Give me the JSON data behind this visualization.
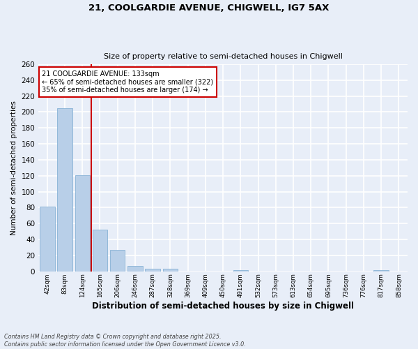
{
  "title_line1": "21, COOLGARDIE AVENUE, CHIGWELL, IG7 5AX",
  "title_line2": "Size of property relative to semi-detached houses in Chigwell",
  "xlabel": "Distribution of semi-detached houses by size in Chigwell",
  "ylabel": "Number of semi-detached properties",
  "categories": [
    "42sqm",
    "83sqm",
    "124sqm",
    "165sqm",
    "206sqm",
    "246sqm",
    "287sqm",
    "328sqm",
    "369sqm",
    "409sqm",
    "450sqm",
    "491sqm",
    "532sqm",
    "573sqm",
    "613sqm",
    "654sqm",
    "695sqm",
    "736sqm",
    "776sqm",
    "817sqm",
    "858sqm"
  ],
  "values": [
    81,
    205,
    121,
    52,
    27,
    7,
    3,
    3,
    0,
    0,
    0,
    2,
    0,
    0,
    0,
    0,
    0,
    0,
    0,
    2,
    0
  ],
  "bar_color": "#b8cfe8",
  "bar_edgecolor": "#7aaad0",
  "vline_x": 2.5,
  "vline_color": "#cc0000",
  "annotation_text": "21 COOLGARDIE AVENUE: 133sqm\n← 65% of semi-detached houses are smaller (322)\n35% of semi-detached houses are larger (174) →",
  "annotation_box_color": "#ffffff",
  "annotation_box_edgecolor": "#cc0000",
  "ylim": [
    0,
    260
  ],
  "yticks": [
    0,
    20,
    40,
    60,
    80,
    100,
    120,
    140,
    160,
    180,
    200,
    220,
    240,
    260
  ],
  "background_color": "#e8eef8",
  "grid_color": "#ffffff",
  "footer": "Contains HM Land Registry data © Crown copyright and database right 2025.\nContains public sector information licensed under the Open Government Licence v3.0."
}
